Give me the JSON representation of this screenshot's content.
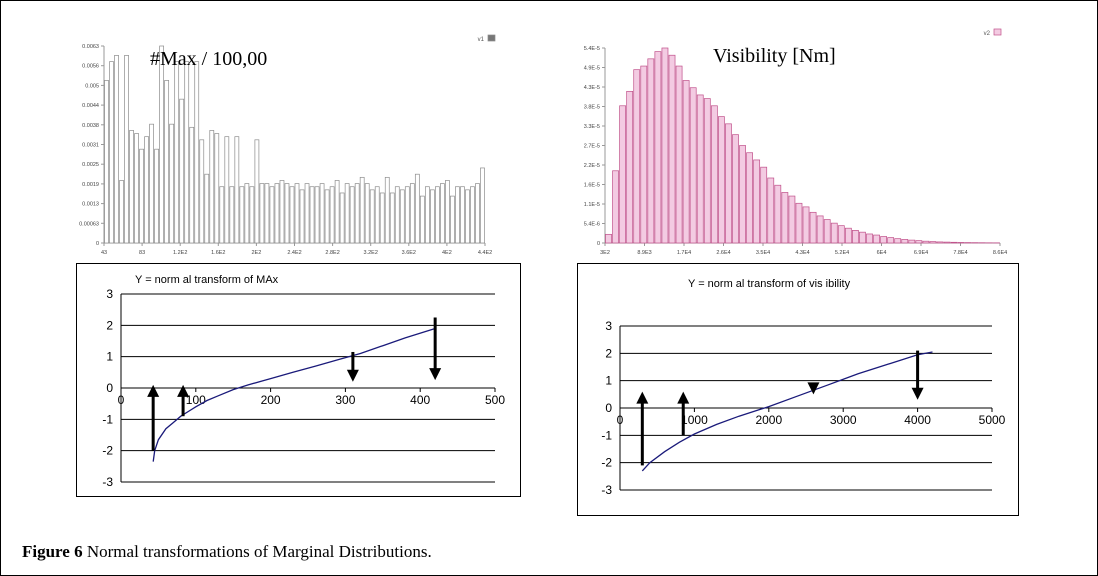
{
  "figure": {
    "caption_label": "Figure 6",
    "caption_text": " Normal transformations of Marginal Distributions."
  },
  "colors": {
    "left_hist_fill": "#ffffff",
    "left_hist_stroke": "#8c8c8c",
    "right_hist_fill": "#f3cbe2",
    "right_hist_stroke": "#c0508a",
    "curve": "#1a1a7a",
    "arrow": "#000000"
  },
  "chart_data": [
    {
      "id": "hist_max",
      "type": "bar",
      "title": "#Max / 100,00",
      "legend": "v1",
      "yticks": [
        "0",
        "0.00063",
        "0.0013",
        "0.0019",
        "0.0025",
        "0.0031",
        "0.0038",
        "0.0044",
        "0.005",
        "0.0056",
        "0.0063"
      ],
      "xticks": [
        "43",
        "83",
        "1.2E2",
        "1.6E2",
        "2E2",
        "2.4E2",
        "2.8E2",
        "3.2E2",
        "3.6E2",
        "4E2",
        "4.4E2"
      ],
      "ylim": [
        0,
        0.0063
      ],
      "values": [
        0.0052,
        0.0058,
        0.006,
        0.002,
        0.006,
        0.0036,
        0.0035,
        0.003,
        0.0034,
        0.0038,
        0.003,
        0.0063,
        0.0052,
        0.0038,
        0.0058,
        0.0046,
        0.0058,
        0.0037,
        0.0058,
        0.0033,
        0.0022,
        0.0036,
        0.0035,
        0.0018,
        0.0034,
        0.0018,
        0.0034,
        0.0018,
        0.0019,
        0.0018,
        0.0033,
        0.0019,
        0.0019,
        0.0018,
        0.0019,
        0.002,
        0.0019,
        0.0018,
        0.0019,
        0.0017,
        0.0019,
        0.0018,
        0.0018,
        0.0019,
        0.0017,
        0.0018,
        0.002,
        0.0016,
        0.0019,
        0.0018,
        0.0019,
        0.0021,
        0.0019,
        0.0017,
        0.0018,
        0.0016,
        0.0021,
        0.0016,
        0.0018,
        0.0017,
        0.0018,
        0.0019,
        0.0022,
        0.0015,
        0.0018,
        0.0017,
        0.0018,
        0.0019,
        0.002,
        0.0015,
        0.0018,
        0.0018,
        0.0017,
        0.0018,
        0.0019,
        0.0024
      ]
    },
    {
      "id": "hist_visibility",
      "type": "bar",
      "title": "Visibility [Nm]",
      "legend": "v2",
      "yticks": [
        "0",
        "5.4E-6",
        "1.1E-5",
        "1.6E-5",
        "2.2E-5",
        "2.7E-5",
        "3.3E-5",
        "3.8E-5",
        "4.3E-5",
        "4.9E-5",
        "5.4E-5"
      ],
      "xticks": [
        "3E2",
        "8.9E3",
        "1.7E4",
        "2.6E4",
        "3.5E4",
        "4.3E4",
        "5.2E4",
        "6E4",
        "6.9E4",
        "7.8E4",
        "8.6E4"
      ],
      "ylim": [
        0,
        5.4e-05
      ],
      "values": [
        2.4e-06,
        2e-05,
        3.8e-05,
        4.2e-05,
        4.8e-05,
        4.9e-05,
        5.1e-05,
        5.3e-05,
        5.4e-05,
        5.2e-05,
        4.9e-05,
        4.5e-05,
        4.3e-05,
        4.1e-05,
        4e-05,
        3.8e-05,
        3.5e-05,
        3.3e-05,
        3e-05,
        2.7e-05,
        2.5e-05,
        2.3e-05,
        2.1e-05,
        1.8e-05,
        1.6e-05,
        1.4e-05,
        1.3e-05,
        1.1e-05,
        1e-05,
        8.5e-06,
        7.5e-06,
        6.5e-06,
        5.5e-06,
        4.8e-06,
        4.1e-06,
        3.5e-06,
        3e-06,
        2.5e-06,
        2.2e-06,
        1.8e-06,
        1.5e-06,
        1.2e-06,
        1e-06,
        8e-07,
        6.5e-07,
        5e-07,
        4e-07,
        3e-07,
        2.5e-07,
        2e-07,
        1.5e-07,
        1.2e-07,
        1e-07,
        8e-08,
        6e-08,
        5e-08
      ]
    },
    {
      "id": "normal_max",
      "type": "line",
      "title": "Y = norm al transform of MAx",
      "xlim": [
        0,
        500
      ],
      "ylim": [
        -3,
        3
      ],
      "xticks": [
        "0",
        "100",
        "200",
        "300",
        "400",
        "500"
      ],
      "yticks": [
        "-3",
        "-2",
        "-1",
        "0",
        "1",
        "2",
        "3"
      ],
      "x": [
        43,
        45,
        50,
        60,
        70,
        80,
        90,
        100,
        115,
        130,
        150,
        170,
        200,
        230,
        260,
        290,
        320,
        350,
        380,
        420
      ],
      "y": [
        -2.35,
        -2.0,
        -1.65,
        -1.3,
        -1.1,
        -0.9,
        -0.75,
        -0.6,
        -0.4,
        -0.25,
        -0.05,
        0.1,
        0.3,
        0.5,
        0.7,
        0.9,
        1.1,
        1.35,
        1.6,
        1.9
      ],
      "arrows": [
        {
          "x": 43,
          "y_from": -2.0,
          "y_to": 0.1,
          "dir": "up"
        },
        {
          "x": 83,
          "y_from": -0.9,
          "y_to": 0.1,
          "dir": "up"
        },
        {
          "x": 310,
          "y_from": 1.15,
          "y_to": 0.2,
          "dir": "down"
        },
        {
          "x": 420,
          "y_from": 2.25,
          "y_to": 0.25,
          "dir": "down"
        }
      ]
    },
    {
      "id": "normal_visibility",
      "type": "line",
      "title": "Y = norm al transform of vis ibility",
      "xlim": [
        0,
        5000
      ],
      "ylim": [
        -3,
        3
      ],
      "xticks": [
        "0",
        "1000",
        "2000",
        "3000",
        "4000",
        "5000"
      ],
      "yticks": [
        "-3",
        "-2",
        "-1",
        "0",
        "1",
        "2",
        "3"
      ],
      "x": [
        300,
        400,
        600,
        800,
        1000,
        1300,
        1600,
        2000,
        2400,
        2800,
        3200,
        3600,
        4000,
        4200
      ],
      "y": [
        -2.3,
        -2.0,
        -1.6,
        -1.25,
        -0.95,
        -0.6,
        -0.3,
        0.05,
        0.45,
        0.85,
        1.25,
        1.6,
        1.95,
        2.05
      ],
      "arrows": [
        {
          "x": 300,
          "y_from": -2.1,
          "y_to": 0.6,
          "dir": "up"
        },
        {
          "x": 850,
          "y_from": -1.0,
          "y_to": 0.6,
          "dir": "up"
        },
        {
          "x": 2600,
          "y_from": 0.9,
          "y_to": 0.5,
          "dir": "down"
        },
        {
          "x": 4000,
          "y_from": 2.1,
          "y_to": 0.3,
          "dir": "down"
        }
      ]
    }
  ]
}
